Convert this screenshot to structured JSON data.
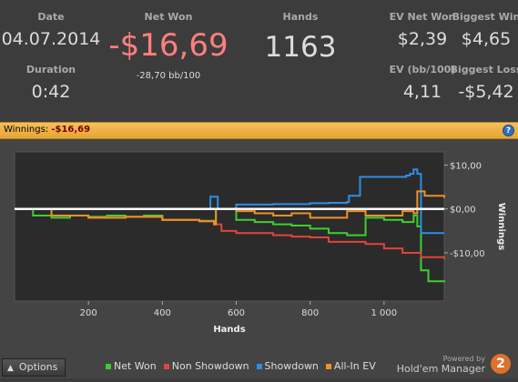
{
  "stats": {
    "date_label": "Date",
    "date_value": "04.07.2014",
    "duration_label": "Duration",
    "duration_value": "0:42",
    "netwon_label": "Net Won",
    "netwon_value": "-$16,69",
    "netwon_sub": "-28,70 bb/100",
    "hands_label": "Hands",
    "hands_value": "1163",
    "evnet_label": "EV Net Won",
    "evnet_value": "$2,39",
    "bigwin_label": "Biggest Win",
    "bigwin_value": "$4,65",
    "evbb_label": "EV (bb/100)",
    "evbb_value": "4,11",
    "bigloss_label": "Biggest Loss",
    "bigloss_value": "-$5,42"
  },
  "bar": {
    "label": "Winnings:",
    "value": "-$16,69",
    "help": "?"
  },
  "colors": {
    "net_won": "#3ad12e",
    "non_showdown": "#e0453a",
    "showdown": "#2d8ee6",
    "allin_ev": "#f0902a",
    "negative": "#ff7f7f"
  },
  "chart_data": {
    "type": "line",
    "xlabel": "Hands",
    "ylabel": "Winnings",
    "xlim": [
      0,
      1163
    ],
    "ylim": [
      -21,
      13
    ],
    "xticks": [
      200,
      400,
      600,
      800,
      1000
    ],
    "xtick_labels": [
      "200",
      "400",
      "600",
      "800",
      "1 000"
    ],
    "yticks": [
      10,
      0,
      -10
    ],
    "ytick_labels": [
      "$10,00",
      "$0,00",
      "-$10,00"
    ],
    "zero_line": 0,
    "series": [
      {
        "name": "Net Won",
        "color": "#3ad12e",
        "x": [
          0,
          50,
          100,
          150,
          200,
          250,
          300,
          350,
          400,
          450,
          500,
          540,
          545,
          600,
          650,
          700,
          750,
          800,
          850,
          900,
          950,
          1000,
          1050,
          1080,
          1090,
          1100,
          1120,
          1163
        ],
        "y": [
          0,
          -1.5,
          -2,
          -1.5,
          -1.8,
          -1.5,
          -1.8,
          -1.5,
          -2.5,
          -2.5,
          -2.7,
          -3.5,
          0,
          -2.5,
          -3,
          -3.5,
          -3.8,
          -4.5,
          -5.5,
          -6,
          -2,
          -2.5,
          -3,
          -1.5,
          -4,
          -14,
          -16.5,
          -16.7
        ]
      },
      {
        "name": "Non Showdown",
        "color": "#e0453a",
        "x": [
          0,
          100,
          200,
          300,
          400,
          500,
          540,
          560,
          600,
          700,
          750,
          800,
          850,
          900,
          950,
          1000,
          1050,
          1100,
          1163
        ],
        "y": [
          0,
          -1.5,
          -2,
          -1.8,
          -2.5,
          -2.8,
          -3.5,
          -5,
          -5.5,
          -6,
          -6.3,
          -6.5,
          -7.5,
          -7.5,
          -8,
          -9,
          -10,
          -11,
          -11.5
        ]
      },
      {
        "name": "Showdown",
        "color": "#2d8ee6",
        "x": [
          0,
          100,
          200,
          300,
          400,
          500,
          525,
          530,
          545,
          550,
          600,
          700,
          800,
          850,
          900,
          905,
          930,
          935,
          1000,
          1050,
          1060,
          1070,
          1080,
          1090,
          1100,
          1163
        ],
        "y": [
          0,
          0,
          0,
          0,
          0,
          0,
          0,
          2.8,
          2.8,
          0,
          1,
          1.1,
          1.3,
          1.4,
          1.6,
          3,
          3,
          7.3,
          7.3,
          7.3,
          7.6,
          8,
          9,
          8,
          -5.5,
          -5.5
        ]
      },
      {
        "name": "All-In EV",
        "color": "#f0902a",
        "x": [
          0,
          100,
          200,
          300,
          400,
          500,
          540,
          545,
          600,
          650,
          700,
          750,
          800,
          850,
          900,
          950,
          1000,
          1050,
          1080,
          1090,
          1110,
          1163
        ],
        "y": [
          0,
          -1.5,
          -2,
          -1.8,
          -2.5,
          -2.8,
          -3.5,
          0,
          -0.5,
          -1,
          -1.5,
          -1,
          -2,
          -2,
          -0.5,
          -1.5,
          -1.5,
          -0.5,
          -1,
          4,
          3,
          2.5
        ]
      }
    ]
  },
  "bottom": {
    "options_label": "Options",
    "powered_by": "Powered by",
    "brand": "Hold'em Manager",
    "logo_digit": "2"
  }
}
